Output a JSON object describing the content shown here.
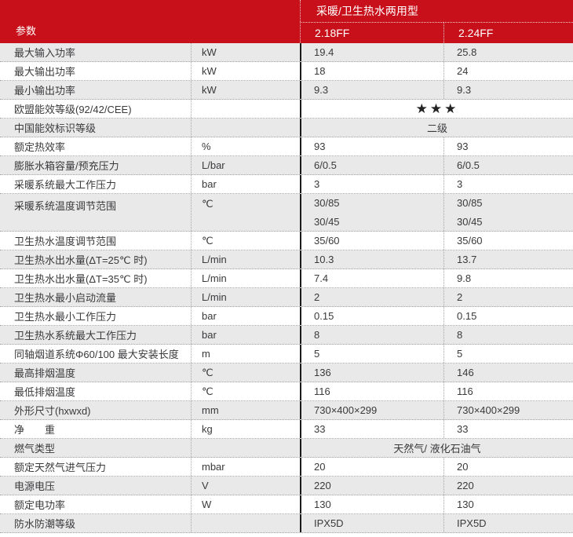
{
  "colors": {
    "header_red": "#c8101b",
    "row_alt_gray": "#e9e9ea",
    "body_text": "#3a3a3c",
    "divider_black": "#1a1a1a",
    "dotted_border": "#a5a5a5"
  },
  "header": {
    "param_label": "参数",
    "group_label": "采暖/卫生热水两用型",
    "model_1": "2.18FF",
    "model_2": "2.24FF"
  },
  "rows": [
    {
      "param": "最大输入功率",
      "unit": "kW",
      "values": [
        "19.4",
        "25.8"
      ]
    },
    {
      "param": "最大输出功率",
      "unit": "kW",
      "values": [
        "18",
        "24"
      ]
    },
    {
      "param": "最小输出功率",
      "unit": "kW",
      "values": [
        "9.3",
        "9.3"
      ]
    },
    {
      "param": "欧盟能效等级(92/42/CEE)",
      "unit": "",
      "span_value": "★★★"
    },
    {
      "param": "中国能效标识等级",
      "unit": "",
      "span_value": "二级"
    },
    {
      "param": "额定热效率",
      "unit": "%",
      "values": [
        "93",
        "93"
      ]
    },
    {
      "param": "膨胀水箱容量/预充压力",
      "unit": "L/bar",
      "values": [
        "6/0.5",
        "6/0.5"
      ]
    },
    {
      "param": "采暖系统最大工作压力",
      "unit": "bar",
      "values": [
        "3",
        "3"
      ]
    },
    {
      "param": "采暖系统温度调节范围",
      "unit": "℃",
      "double": true,
      "values": [
        [
          "30/85",
          "30/45"
        ],
        [
          "30/85",
          "30/45"
        ]
      ]
    },
    {
      "param": "卫生热水温度调节范围",
      "unit": "℃",
      "values": [
        "35/60",
        "35/60"
      ]
    },
    {
      "param": "卫生热水出水量(ΔT=25℃ 时)",
      "unit": "L/min",
      "values": [
        "10.3",
        "13.7"
      ]
    },
    {
      "param": "卫生热水出水量(ΔT=35℃ 时)",
      "unit": "L/min",
      "values": [
        "7.4",
        "9.8"
      ]
    },
    {
      "param": "卫生热水最小启动流量",
      "unit": "L/min",
      "values": [
        "2",
        "2"
      ]
    },
    {
      "param": "卫生热水最小工作压力",
      "unit": "bar",
      "values": [
        "0.15",
        "0.15"
      ]
    },
    {
      "param": "卫生热水系统最大工作压力",
      "unit": "bar",
      "values": [
        "8",
        "8"
      ]
    },
    {
      "param": "同轴烟道系统Φ60/100 最大安装长度",
      "unit": "m",
      "values": [
        "5",
        "5"
      ]
    },
    {
      "param": "最高排烟温度",
      "unit": "℃",
      "values": [
        "136",
        "146"
      ]
    },
    {
      "param": "最低排烟温度",
      "unit": "℃",
      "values": [
        "116",
        "116"
      ]
    },
    {
      "param": "外形尺寸(hxwxd)",
      "unit": "mm",
      "values": [
        "730×400×299",
        "730×400×299"
      ]
    },
    {
      "param": "净　　重",
      "unit": "kg",
      "values": [
        "33",
        "33"
      ]
    },
    {
      "param": "燃气类型",
      "unit": "",
      "span_value": "天然气/ 液化石油气"
    },
    {
      "param": "额定天然气进气压力",
      "unit": "mbar",
      "values": [
        "20",
        "20"
      ]
    },
    {
      "param": "电源电压",
      "unit": "V",
      "values": [
        "220",
        "220"
      ]
    },
    {
      "param": "额定电功率",
      "unit": "W",
      "values": [
        "130",
        "130"
      ]
    },
    {
      "param": "防水防潮等级",
      "unit": "",
      "values": [
        "IPX5D",
        "IPX5D"
      ]
    }
  ]
}
